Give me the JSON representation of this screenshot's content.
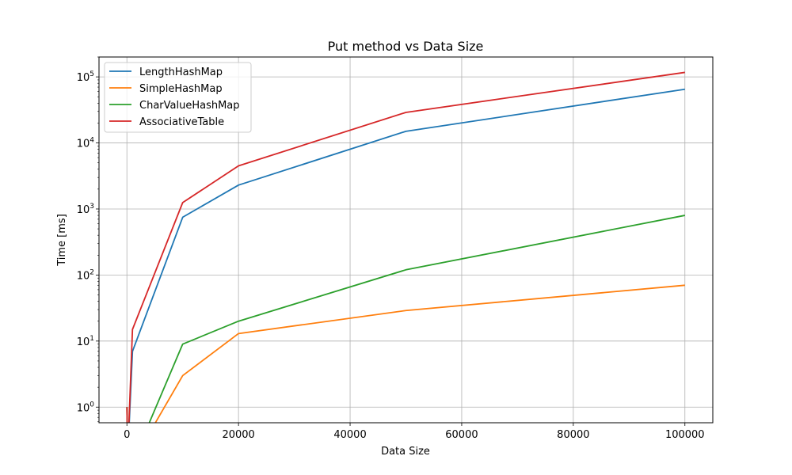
{
  "chart_data": {
    "type": "line",
    "title": "Put method vs Data Size",
    "xlabel": "Data Size",
    "ylabel": "Time [ms]",
    "x": [
      10,
      100,
      1000,
      10000,
      20000,
      50000,
      100000
    ],
    "xlim": [
      -5000,
      105000
    ],
    "xticks": [
      0,
      20000,
      40000,
      60000,
      80000,
      100000
    ],
    "xtick_labels": [
      "0",
      "20000",
      "40000",
      "60000",
      "80000",
      "100000"
    ],
    "yscale": "log",
    "ylim": [
      0.58,
      200000
    ],
    "yticks": [
      1,
      10,
      100,
      1000,
      10000,
      100000
    ],
    "ytick_labels": [
      {
        "base": "10",
        "exp": "0"
      },
      {
        "base": "10",
        "exp": "1"
      },
      {
        "base": "10",
        "exp": "2"
      },
      {
        "base": "10",
        "exp": "3"
      },
      {
        "base": "10",
        "exp": "4"
      },
      {
        "base": "10",
        "exp": "5"
      }
    ],
    "grid": true,
    "legend_position": "top-left",
    "series": [
      {
        "name": "LengthHashMap",
        "color": "#1f77b4",
        "values": [
          1,
          0,
          7,
          750,
          2300,
          15000,
          65000
        ]
      },
      {
        "name": "SimpleHashMap",
        "color": "#ff7f0e",
        "values": [
          1,
          0,
          0,
          3,
          13,
          29,
          70
        ]
      },
      {
        "name": "CharValueHashMap",
        "color": "#2ca02c",
        "values": [
          1,
          0,
          0,
          9,
          20,
          120,
          800
        ]
      },
      {
        "name": "AssociativeTable",
        "color": "#d62728",
        "values": [
          1,
          0,
          15,
          1250,
          4500,
          29000,
          117000
        ]
      }
    ]
  }
}
